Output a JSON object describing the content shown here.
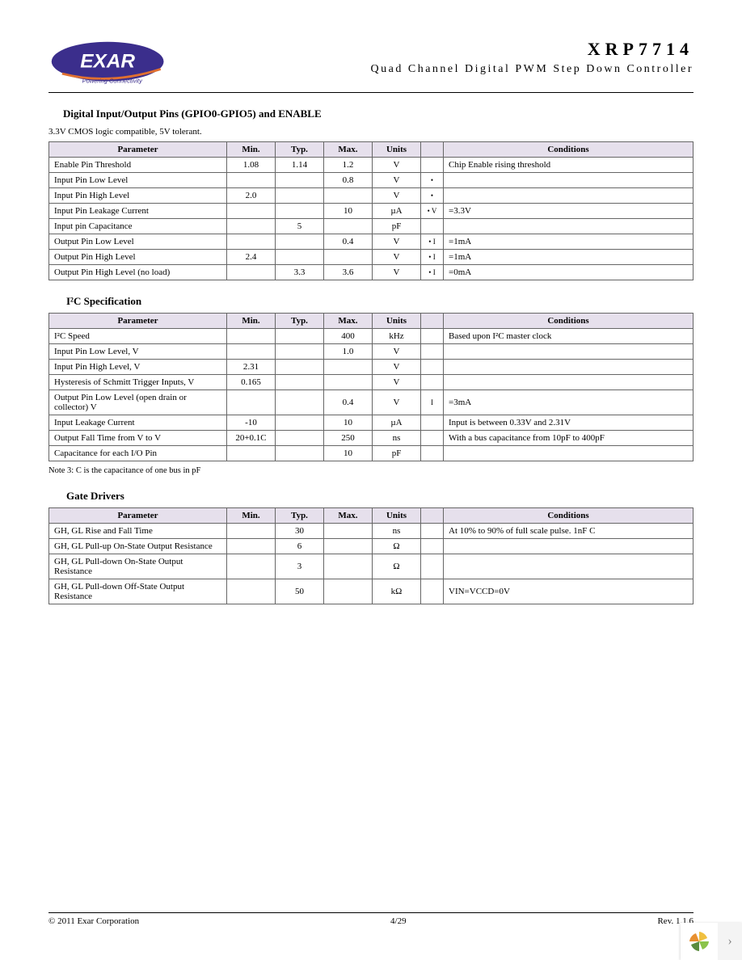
{
  "header": {
    "logo_text": "EXAR",
    "logo_tagline": "Powering Connectivity",
    "part_number": "XRP7714",
    "subtitle": "Quad Channel Digital PWM Step Down Controller"
  },
  "section1": {
    "title": "Digital Input/Output Pins (GPIO0-GPIO5) and ENABLE",
    "sub_note": "3.3V CMOS logic compatible, 5V tolerant.",
    "columns": [
      "Parameter",
      "Min.",
      "Typ.",
      "Max.",
      "Units",
      "",
      "Conditions"
    ],
    "rows": [
      {
        "param": "Enable Pin Threshold",
        "min": "1.08",
        "typ": "1.14",
        "max": "1.2",
        "units": "V",
        "dot": "",
        "cond": "Chip Enable rising threshold"
      },
      {
        "param": "Input Pin Low Level",
        "min": "",
        "typ": "",
        "max": "0.8",
        "units": "V",
        "dot": "•",
        "cond": ""
      },
      {
        "param": "Input Pin High Level",
        "min": "2.0",
        "typ": "",
        "max": "",
        "units": "V",
        "dot": "•",
        "cond": ""
      },
      {
        "param": "Input Pin Leakage Current",
        "min": "",
        "typ": "",
        "max": "10",
        "units": "µA",
        "dot": "• V",
        "cond": "=3.3V"
      },
      {
        "param": "Input pin Capacitance",
        "min": "",
        "typ": "5",
        "max": "",
        "units": "pF",
        "dot": "",
        "cond": ""
      },
      {
        "param": "Output Pin Low Level",
        "min": "",
        "typ": "",
        "max": "0.4",
        "units": "V",
        "dot": "• I",
        "cond": "=1mA"
      },
      {
        "param": "Output Pin High Level",
        "min": "2.4",
        "typ": "",
        "max": "",
        "units": "V",
        "dot": "• I",
        "cond": "=1mA"
      },
      {
        "param": "Output Pin High Level (no load)",
        "min": "",
        "typ": "3.3",
        "max": "3.6",
        "units": "V",
        "dot": "• I",
        "cond": "=0mA"
      }
    ]
  },
  "section2": {
    "title": "I²C Specification",
    "columns": [
      "Parameter",
      "Min.",
      "Typ.",
      "Max.",
      "Units",
      "",
      "Conditions"
    ],
    "rows": [
      {
        "param": "I²C Speed",
        "min": "",
        "typ": "",
        "max": "400",
        "units": "kHz",
        "dot": "",
        "cond": "Based upon I²C master clock"
      },
      {
        "param": "Input Pin Low Level, V",
        "min": "",
        "typ": "",
        "max": "1.0",
        "units": "V",
        "dot": "",
        "cond": ""
      },
      {
        "param": "Input Pin High Level, V",
        "min": "2.31",
        "typ": "",
        "max": "",
        "units": "V",
        "dot": "",
        "cond": ""
      },
      {
        "param": "Hysteresis of Schmitt Trigger Inputs, V",
        "min": "0.165",
        "typ": "",
        "max": "",
        "units": "V",
        "dot": "",
        "cond": ""
      },
      {
        "param": "Output Pin Low Level (open drain or collector) V",
        "min": "",
        "typ": "",
        "max": "0.4",
        "units": "V",
        "dot": "I",
        "cond": "=3mA"
      },
      {
        "param": "Input Leakage Current",
        "min": "-10",
        "typ": "",
        "max": "10",
        "units": "µA",
        "dot": "",
        "cond": "Input is between 0.33V and 2.31V"
      },
      {
        "param": "Output Fall Time from V            to V",
        "min": "20+0.1C",
        "typ": "",
        "max": "250",
        "units": "ns",
        "dot": "",
        "cond": "With a bus capacitance from 10pF to 400pF"
      },
      {
        "param": "Capacitance for each I/O Pin",
        "min": "",
        "typ": "",
        "max": "10",
        "units": "pF",
        "dot": "",
        "cond": ""
      }
    ],
    "note": "Note 3: C      is the capacitance of one bus in pF"
  },
  "section3": {
    "title": "Gate Drivers",
    "columns": [
      "Parameter",
      "Min.",
      "Typ.",
      "Max.",
      "Units",
      "",
      "Conditions"
    ],
    "rows": [
      {
        "param": "GH, GL Rise and Fall Time",
        "min": "",
        "typ": "30",
        "max": "",
        "units": "ns",
        "dot": "",
        "cond": "At 10% to 90% of full scale pulse. 1nF C"
      },
      {
        "param": "GH, GL Pull-up On-State Output Resistance",
        "min": "",
        "typ": "6",
        "max": "",
        "units": "Ω",
        "dot": "",
        "cond": ""
      },
      {
        "param": "GH, GL Pull-down On-State Output Resistance",
        "min": "",
        "typ": "3",
        "max": "",
        "units": "Ω",
        "dot": "",
        "cond": ""
      },
      {
        "param": "GH, GL Pull-down Off-State Output Resistance",
        "min": "",
        "typ": "50",
        "max": "",
        "units": "kΩ",
        "dot": "",
        "cond": "VIN=VCCD=0V"
      }
    ]
  },
  "footer": {
    "left": "© 2011 Exar Corporation",
    "center": "4/29",
    "right": "Rev. 1.1.6"
  },
  "colors": {
    "header_bg": "#e6e0ec",
    "border": "#666666",
    "logo_purple": "#3b2e8c",
    "logo_text": "#ffffff",
    "logo_swoosh": "#e07030"
  }
}
